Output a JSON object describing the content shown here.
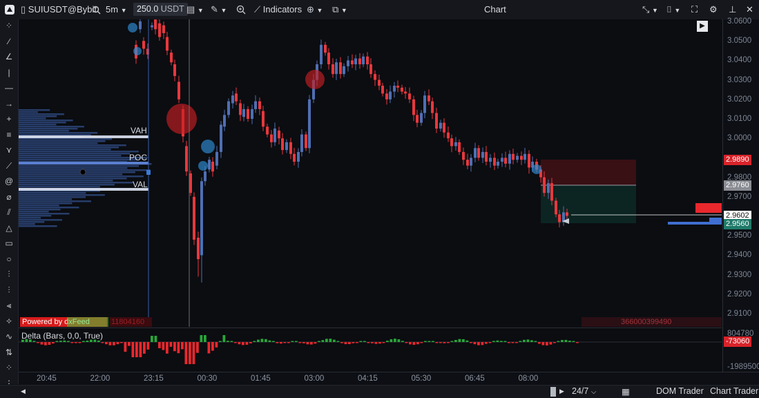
{
  "toolbar": {
    "symbol": "SUIUSDT@Bybit",
    "timeframe": "5m",
    "quantity": "250.0",
    "quantity_unit": "USDT",
    "indicators_label": "Indicators",
    "window_title": "Chart"
  },
  "left_tools": [
    "cursor-icon",
    "line-icon",
    "angle-icon",
    "vertical-line-icon",
    "horizontal-line-icon",
    "arrow-icon",
    "crosshair-icon",
    "fib-icon",
    "pitchfork-icon",
    "brush-icon",
    "magnet-icon",
    "ruler-icon",
    "parallel-icon",
    "triangle-icon",
    "rectangle-icon",
    "circle-icon",
    "bars-pattern-icon",
    "text-icon",
    "volume-profile-icon",
    "sparkle-icon",
    "zigzag-icon",
    "delta-icon",
    "more-icon",
    "dots-icon"
  ],
  "profile": {
    "vah_label": "VAH",
    "poc_label": "POC",
    "val_label": "VAL"
  },
  "feed": {
    "powered_by": "Powered by dxFeed",
    "left_value": "11804160",
    "right_value": "366000399490"
  },
  "price_axis": {
    "labels": [
      "3.0600",
      "3.0500",
      "3.0400",
      "3.0300",
      "3.0200",
      "3.0100",
      "3.0000",
      "2.9890",
      "2.9800",
      "2.9760",
      "2.9700",
      "2.9602",
      "2.9560",
      "2.9500",
      "2.9400",
      "2.9300",
      "2.9200",
      "2.9100"
    ],
    "tags": {
      "stop": "2.9890",
      "entry": "2.9760",
      "last": "2.9602",
      "target": "2.9560"
    },
    "colors": {
      "stop": "#d8232a",
      "entry": "#8a8d93",
      "last": "#ffffff",
      "target": "#1f7a6a"
    }
  },
  "delta_panel": {
    "title": "Delta (Bars, 0,0, True)",
    "upper_value": "804780",
    "current_value": "-73060",
    "lower_value": "-1989500"
  },
  "time_axis": [
    "20:45",
    "22:00",
    "23:15",
    "00:30",
    "01:45",
    "03:00",
    "04:15",
    "05:30",
    "06:45",
    "08:00"
  ],
  "bottombar": {
    "session": "24/7",
    "dom_trader": "DOM Trader",
    "chart_trader": "Chart Trader"
  },
  "colors": {
    "bull": "#4f6fb3",
    "bear": "#e8383d",
    "profile": "#3f66b5",
    "delta_pos": "#2aa63a",
    "delta_neg": "#e8282d"
  }
}
